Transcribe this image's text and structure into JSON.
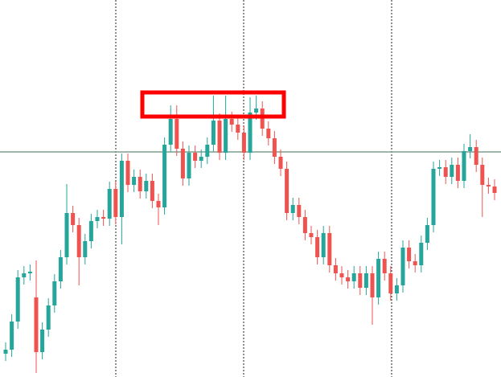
{
  "chart_data": {
    "type": "candlestick",
    "up_color": "#26a69a",
    "down_color": "#ef5350",
    "ylim": [
      0,
      469
    ],
    "level": 280,
    "level_color": "#7f9f8f",
    "open": [
      29,
      34,
      69,
      124,
      129,
      99,
      31,
      59,
      89,
      119,
      149,
      204,
      189,
      149,
      169,
      194,
      199,
      197,
      234,
      199,
      269,
      239,
      249,
      231,
      244,
      219,
      211,
      289,
      321,
      284,
      247,
      279,
      269,
      274,
      289,
      319,
      279,
      321,
      314,
      304,
      279,
      329,
      334,
      309,
      297,
      274,
      259,
      204,
      214,
      199,
      179,
      174,
      149,
      179,
      139,
      129,
      124,
      119,
      129,
      111,
      129,
      99,
      147,
      129,
      104,
      114,
      161,
      144,
      139,
      167,
      189,
      259,
      261,
      249,
      264,
      244,
      281,
      286,
      264,
      239,
      237
    ],
    "high": [
      43,
      78,
      133,
      138,
      140,
      145,
      68,
      98,
      128,
      158,
      240,
      213,
      198,
      178,
      203,
      208,
      208,
      243,
      243,
      278,
      278,
      258,
      258,
      253,
      253,
      228,
      298,
      338,
      338,
      293,
      288,
      288,
      283,
      298,
      350,
      328,
      350,
      330,
      323,
      313,
      348,
      350,
      343,
      318,
      306,
      283,
      268,
      223,
      223,
      208,
      188,
      183,
      188,
      188,
      148,
      138,
      133,
      138,
      138,
      138,
      138,
      156,
      156,
      138,
      123,
      170,
      170,
      153,
      176,
      198,
      268,
      270,
      270,
      273,
      273,
      290,
      302,
      295,
      273,
      248,
      246
    ],
    "low": [
      20,
      25,
      60,
      115,
      120,
      5,
      22,
      50,
      80,
      110,
      140,
      180,
      114,
      140,
      160,
      185,
      188,
      188,
      190,
      165,
      230,
      230,
      222,
      222,
      210,
      189,
      202,
      280,
      275,
      238,
      238,
      260,
      260,
      265,
      280,
      270,
      270,
      305,
      295,
      270,
      270,
      320,
      300,
      288,
      265,
      250,
      195,
      195,
      190,
      170,
      165,
      140,
      140,
      130,
      120,
      115,
      110,
      110,
      102,
      102,
      65,
      90,
      120,
      95,
      95,
      105,
      135,
      130,
      130,
      158,
      180,
      250,
      240,
      240,
      235,
      235,
      272,
      255,
      199,
      228,
      220
    ],
    "close": [
      34,
      69,
      124,
      129,
      131,
      31,
      59,
      89,
      119,
      149,
      204,
      189,
      149,
      169,
      194,
      199,
      197,
      234,
      199,
      269,
      239,
      249,
      231,
      244,
      219,
      211,
      289,
      321,
      284,
      247,
      279,
      269,
      274,
      289,
      319,
      279,
      321,
      314,
      304,
      279,
      329,
      334,
      309,
      297,
      274,
      259,
      204,
      214,
      199,
      179,
      174,
      149,
      179,
      139,
      129,
      124,
      119,
      129,
      111,
      129,
      99,
      147,
      129,
      104,
      114,
      161,
      144,
      139,
      167,
      189,
      259,
      261,
      249,
      264,
      244,
      281,
      286,
      264,
      239,
      237,
      229
    ]
  }
}
